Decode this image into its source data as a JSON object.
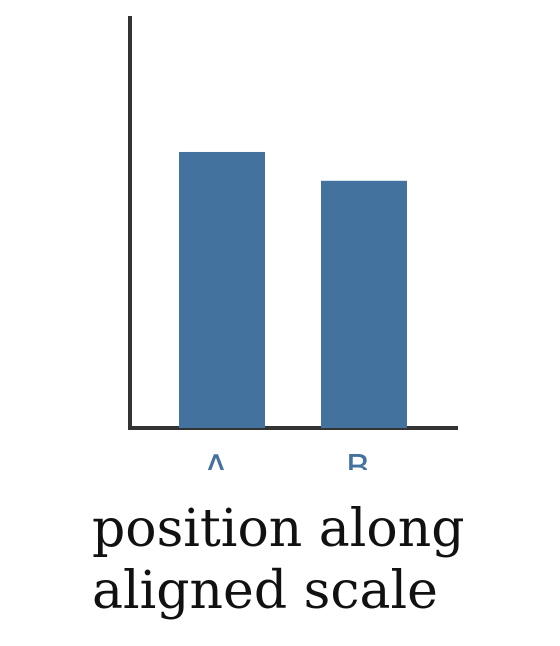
{
  "chart_data": {
    "type": "bar",
    "categories": [
      "A",
      "B"
    ],
    "values": [
      67,
      60
    ],
    "ylim": [
      0,
      100
    ],
    "xlabel": "",
    "ylabel": "",
    "grid": false
  },
  "caption": {
    "line1": "position along",
    "line2": "aligned scale"
  },
  "colors": {
    "bar": "#44729f",
    "axis": "#333333",
    "tick_label": "#44729f"
  }
}
